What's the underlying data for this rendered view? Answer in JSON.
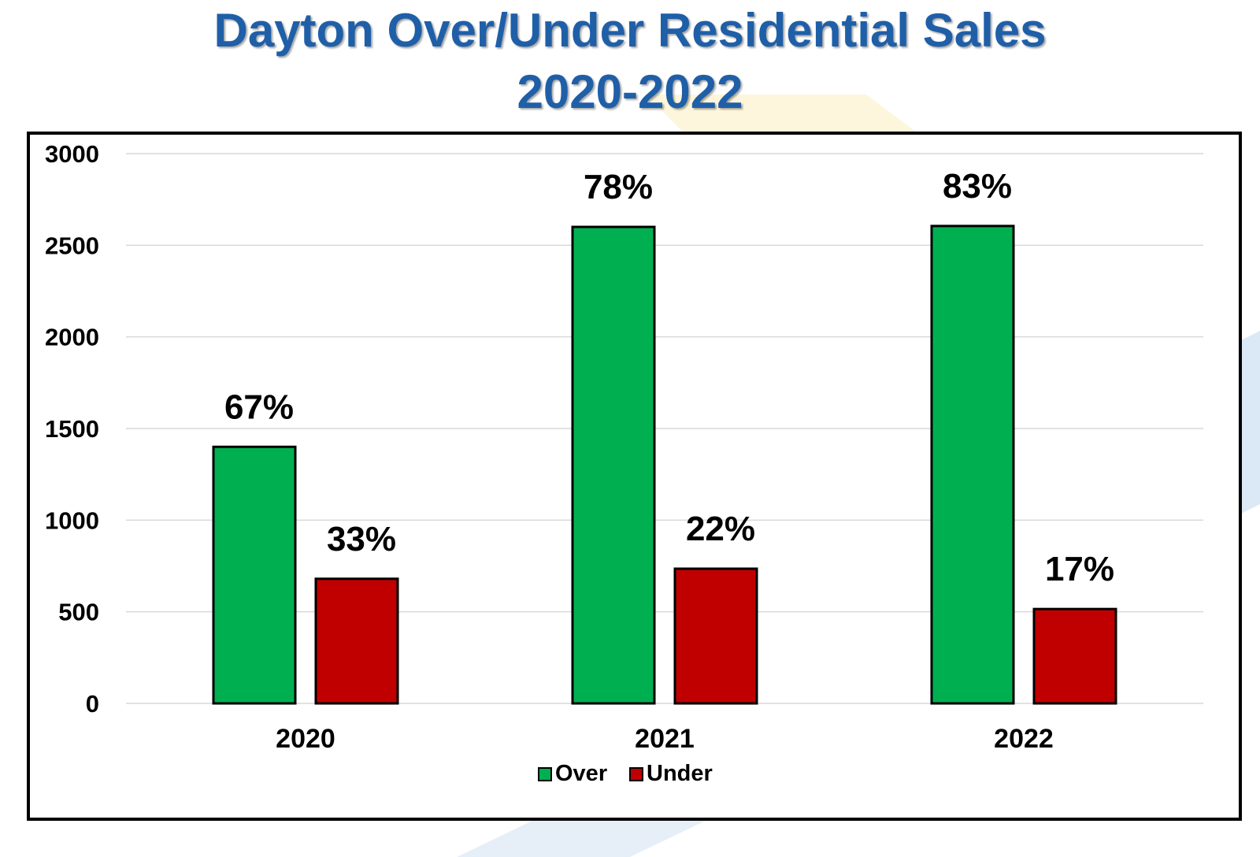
{
  "chart_data": {
    "type": "bar",
    "title": "Dayton Over/Under Residential Sales",
    "subtitle": "2020-2022",
    "categories": [
      "2020",
      "2021",
      "2022"
    ],
    "series": [
      {
        "name": "Over",
        "color": "#00b050",
        "values": [
          1400,
          2600,
          2605
        ],
        "labels": [
          "67%",
          "78%",
          "83%"
        ]
      },
      {
        "name": "Under",
        "color": "#c00000",
        "values": [
          680,
          735,
          515
        ],
        "labels": [
          "33%",
          "22%",
          "17%"
        ]
      }
    ],
    "y_ticks": [
      "0",
      "500",
      "1000",
      "1500",
      "2000",
      "2500",
      "3000"
    ],
    "ylim": [
      0,
      3000
    ],
    "xlabel": "",
    "ylabel": "",
    "grid": true,
    "legend": "bottom-center"
  }
}
